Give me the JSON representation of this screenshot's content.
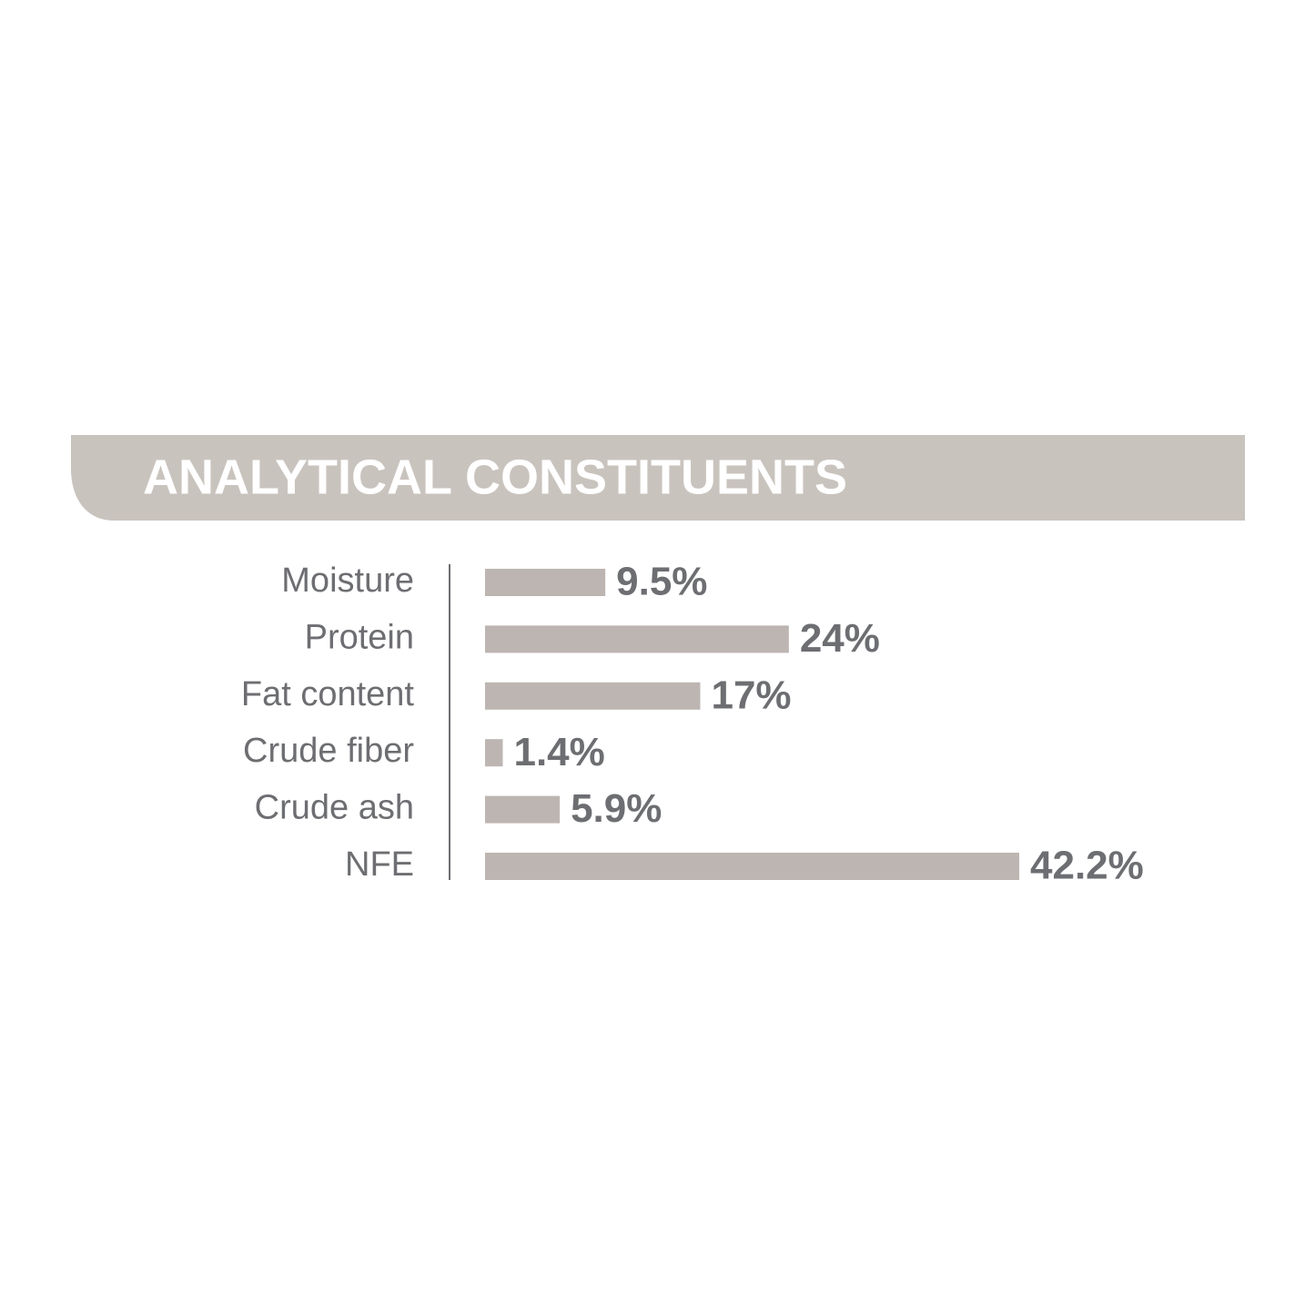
{
  "chart_data": {
    "type": "bar",
    "orientation": "horizontal",
    "title": "ANALYTICAL CONSTITUENTS",
    "categories": [
      "Moisture",
      "Protein",
      "Fat content",
      "Crude fiber",
      "Crude ash",
      "NFE"
    ],
    "values": [
      9.5,
      24,
      17,
      1.4,
      5.9,
      42.2
    ],
    "value_labels": [
      "9.5%",
      "24%",
      "17%",
      "1.4%",
      "5.9%",
      "42.2%"
    ],
    "color": "#bdb5b1"
  }
}
